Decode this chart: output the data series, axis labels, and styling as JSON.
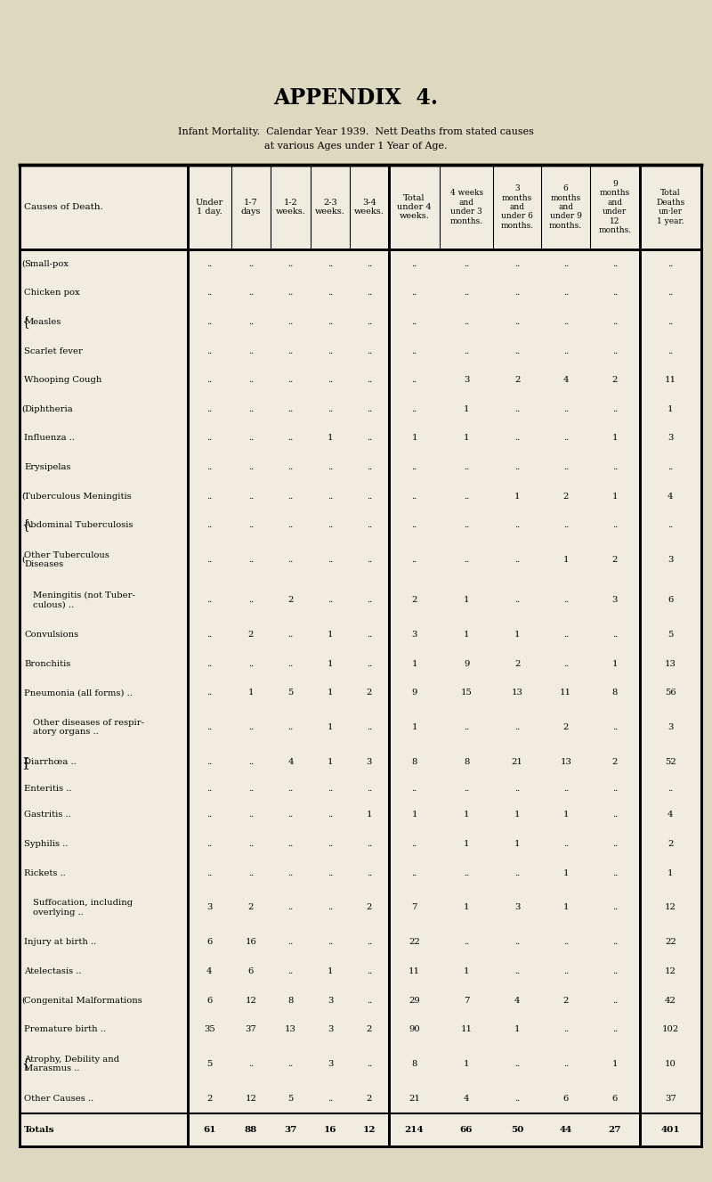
{
  "title": "APPENDIX  4.",
  "subtitle1": "Infant Mortality.  Calendar Year 1939.  Nett Deaths from stated causes",
  "subtitle2": "at various Ages under 1 Year of Age.",
  "bg_color": "#ddd8c0",
  "table_bg": "#e8e4d0",
  "rows": [
    {
      "label": "Small-pox",
      "bracket_open": "(",
      "bracket_close": "",
      "two_line": false,
      "vals": [
        "",
        "",
        "",
        "",
        "",
        "",
        "",
        "",
        "",
        "",
        ""
      ]
    },
    {
      "label": "Chicken pox",
      "bracket_open": "|",
      "bracket_close": "",
      "two_line": false,
      "vals": [
        "",
        "",
        "",
        "",
        "",
        "",
        "",
        "",
        "",
        "",
        ""
      ]
    },
    {
      "label": "Measles",
      "bracket_open": "{",
      "bracket_close": "",
      "two_line": false,
      "vals": [
        "",
        "",
        "",
        "",
        "",
        "",
        "",
        "",
        "",
        "",
        ""
      ]
    },
    {
      "label": "Scarlet fever",
      "bracket_open": "|",
      "bracket_close": "",
      "two_line": false,
      "vals": [
        "",
        "",
        "",
        "",
        "",
        "",
        "",
        "",
        "",
        "",
        ""
      ]
    },
    {
      "label": "Whooping Cough",
      "bracket_open": "\\",
      "bracket_close": "",
      "two_line": false,
      "vals": [
        "",
        "",
        "",
        "",
        "",
        "",
        "3",
        "2",
        "4",
        "2",
        "11"
      ]
    },
    {
      "label": "Diphtheria",
      "bracket_open": "(",
      "bracket_close": "",
      "two_line": false,
      "vals": [
        "",
        "",
        "",
        "",
        "",
        "",
        "1",
        "",
        "",
        "",
        "1"
      ]
    },
    {
      "label": "Influenza ..",
      "bracket_open": "",
      "bracket_close": "",
      "two_line": false,
      "vals": [
        "",
        "",
        "",
        "1",
        "",
        "1",
        "1",
        "",
        "",
        "1",
        "3"
      ]
    },
    {
      "label": "Erysipelas",
      "bracket_open": "",
      "bracket_close": "",
      "two_line": false,
      "vals": [
        "",
        "",
        "",
        "",
        "",
        "",
        "",
        "",
        "",
        "",
        ""
      ]
    },
    {
      "label": "Tuberculous Meningitis",
      "bracket_open": "(",
      "bracket_close": "",
      "two_line": false,
      "vals": [
        "",
        "",
        "",
        "",
        "",
        "",
        "",
        "1",
        "2",
        "1",
        "4"
      ]
    },
    {
      "label": "Abdominal Tuberculosis",
      "bracket_open": "{",
      "bracket_close": "",
      "two_line": false,
      "vals": [
        "",
        "",
        "",
        "",
        "",
        "",
        "",
        "",
        "",
        "",
        ""
      ]
    },
    {
      "label": "Other Tuberculous\nDiseases",
      "bracket_open": "(",
      "bracket_close": "",
      "two_line": true,
      "vals": [
        "",
        "",
        "",
        "",
        "",
        "",
        "",
        "",
        "1",
        "2",
        "3"
      ]
    },
    {
      "label": "Meningitis (not Tuber-\nculous) ..",
      "bracket_open": "",
      "bracket_close": "",
      "two_line": true,
      "indent": true,
      "vals": [
        "",
        "",
        "2",
        "",
        "",
        "2",
        "1",
        "",
        "",
        "3",
        "6"
      ]
    },
    {
      "label": "Convulsions",
      "bracket_open": "",
      "bracket_close": "",
      "two_line": false,
      "vals": [
        "",
        "2",
        "",
        "1",
        "",
        "3",
        "1",
        "1",
        "",
        "",
        "5"
      ]
    },
    {
      "label": "Bronchitis",
      "bracket_open": "",
      "bracket_close": "",
      "two_line": false,
      "vals": [
        "",
        "",
        "",
        "1",
        "",
        "1",
        "9",
        "2",
        "",
        "1",
        "13"
      ]
    },
    {
      "label": "Pneumonia (all forms) ..",
      "bracket_open": "",
      "bracket_close": "",
      "two_line": false,
      "vals": [
        "",
        "1",
        "5",
        "1",
        "2",
        "9",
        "15",
        "13",
        "11",
        "8",
        "56"
      ]
    },
    {
      "label": "Other diseases of respir-\natory organs ..",
      "bracket_open": "",
      "bracket_close": "",
      "two_line": true,
      "indent": true,
      "vals": [
        "",
        "",
        "",
        "1",
        "",
        "1",
        "",
        "",
        "2",
        "",
        "3"
      ]
    },
    {
      "label": "Diarrhœa ..",
      "bracket_open": "{",
      "bracket_close": "}",
      "two_line": false,
      "vals": [
        "",
        "",
        "4",
        "1",
        "3",
        "8",
        "8",
        "21",
        "13",
        "2",
        "52"
      ]
    },
    {
      "label": "Enteritis ..",
      "bracket_open": "",
      "bracket_close": "",
      "two_line": false,
      "vals": [
        "",
        "",
        "",
        "",
        "",
        "",
        "",
        "",
        "",
        "",
        ""
      ]
    },
    {
      "label": "Gastritis ..",
      "bracket_open": "",
      "bracket_close": "",
      "two_line": false,
      "vals": [
        "",
        "",
        "",
        "",
        "1",
        "1",
        "1",
        "1",
        "1",
        "",
        "4"
      ]
    },
    {
      "label": "Syphilis ..",
      "bracket_open": "",
      "bracket_close": "",
      "two_line": false,
      "vals": [
        "",
        "",
        "",
        "",
        "",
        "",
        "1",
        "1",
        "",
        "",
        "2"
      ]
    },
    {
      "label": "Rickets ..",
      "bracket_open": "",
      "bracket_close": "",
      "two_line": false,
      "vals": [
        "",
        "",
        "",
        "",
        "",
        "",
        "",
        "",
        "1",
        "",
        "1"
      ]
    },
    {
      "label": "Suffocation, including\noverlying ..",
      "bracket_open": "",
      "bracket_close": "",
      "two_line": true,
      "indent": true,
      "vals": [
        "3",
        "2",
        "",
        "",
        "2",
        "7",
        "1",
        "3",
        "1",
        "",
        "12"
      ]
    },
    {
      "label": "Injury at birth ..",
      "bracket_open": "",
      "bracket_close": "",
      "two_line": false,
      "vals": [
        "6",
        "16",
        "",
        "",
        "",
        "22",
        "",
        "",
        "",
        "",
        "22"
      ]
    },
    {
      "label": "Atelectasis ..",
      "bracket_open": "",
      "bracket_close": "",
      "two_line": false,
      "vals": [
        "4",
        "6",
        "",
        "1",
        "",
        "11",
        "1",
        "",
        "",
        "",
        "12"
      ]
    },
    {
      "label": "Congenital Malformations",
      "bracket_open": "(",
      "bracket_close": "",
      "two_line": false,
      "vals": [
        "6",
        "12",
        "8",
        "3",
        "",
        "29",
        "7",
        "4",
        "2",
        "",
        "42"
      ]
    },
    {
      "label": "Premature birth ..",
      "bracket_open": "",
      "bracket_close": "",
      "two_line": false,
      "vals": [
        "35",
        "37",
        "13",
        "3",
        "2",
        "90",
        "11",
        "1",
        "",
        "",
        "102"
      ]
    },
    {
      "label": "Atrophy, Debility and\nMarasmus ..",
      "bracket_open": "{",
      "bracket_close": "",
      "two_line": true,
      "vals": [
        "5",
        "",
        "",
        "3",
        "",
        "8",
        "1",
        "",
        "",
        "1",
        "10"
      ]
    },
    {
      "label": "Other Causes ..",
      "bracket_open": "",
      "bracket_close": "",
      "two_line": false,
      "vals": [
        "2",
        "12",
        "5",
        "",
        "2",
        "21",
        "4",
        "",
        "6",
        "6",
        "37"
      ]
    },
    {
      "label": "Totals",
      "bracket_open": "",
      "bracket_close": "",
      "two_line": false,
      "is_total": true,
      "vals": [
        "61",
        "88",
        "37",
        "16",
        "12",
        "214",
        "66",
        "50",
        "44",
        "27",
        "401"
      ]
    }
  ]
}
